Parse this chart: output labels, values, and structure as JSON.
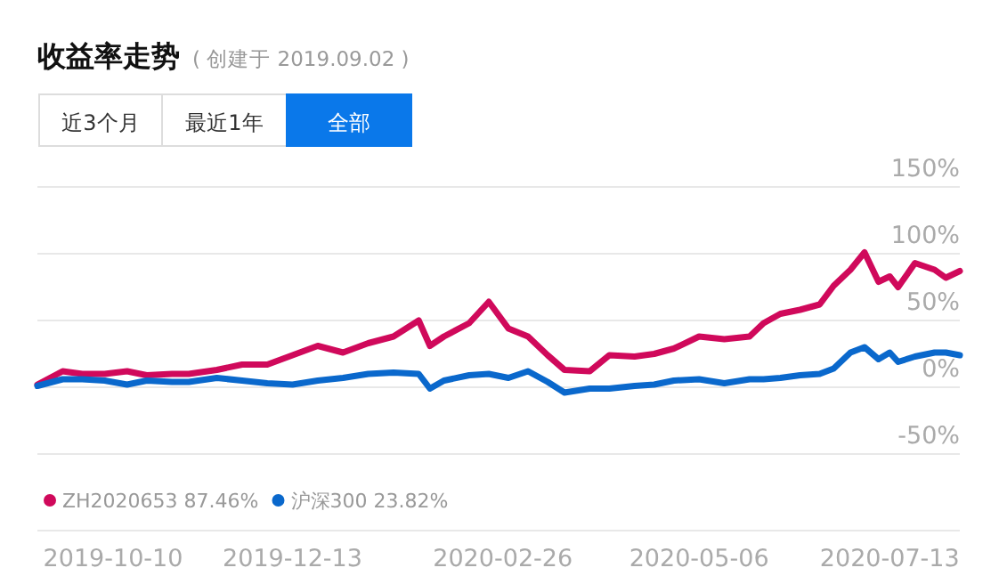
{
  "chart_data": {
    "type": "line",
    "title": "收益率走势",
    "subtitle": "( 创建于 2019.09.02 )",
    "annotations": [
      "近3个月",
      "最近1年",
      "全部"
    ],
    "x": [
      "2019-09-13",
      "2019-09-22",
      "2019-09-29",
      "2019-10-07",
      "2019-10-15",
      "2019-10-22",
      "2019-10-31",
      "2019-11-06",
      "2019-11-16",
      "2019-11-25",
      "2019-12-04",
      "2019-12-13",
      "2019-12-22",
      "2019-12-31",
      "2020-01-09",
      "2020-01-18",
      "2020-01-27",
      "2020-01-31",
      "2020-02-05",
      "2020-02-14",
      "2020-02-21",
      "2020-02-28",
      "2020-03-06",
      "2020-03-13",
      "2020-03-19",
      "2020-03-28",
      "2020-04-04",
      "2020-04-13",
      "2020-04-20",
      "2020-04-27",
      "2020-05-06",
      "2020-05-15",
      "2020-05-24",
      "2020-05-29",
      "2020-06-04",
      "2020-06-11",
      "2020-06-18",
      "2020-06-23",
      "2020-06-29",
      "2020-07-04",
      "2020-07-09",
      "2020-07-13",
      "2020-07-16",
      "2020-07-22",
      "2020-07-29",
      "2020-08-02",
      "2020-08-07"
    ],
    "series": [
      {
        "name": "ZH2020653 87.46%",
        "color": "#d0095b",
        "values": [
          2,
          12,
          10,
          10,
          12,
          9,
          10,
          10,
          13,
          17,
          17,
          24,
          31,
          26,
          33,
          38,
          50,
          31,
          38,
          48,
          64,
          44,
          38,
          24,
          13,
          12,
          24,
          23,
          25,
          29,
          38,
          36,
          38,
          48,
          55,
          58,
          62,
          76,
          88,
          101,
          79,
          83,
          75,
          93,
          88,
          82,
          87
        ]
      },
      {
        "name": "沪深300 23.82%",
        "color": "#0a68cc",
        "values": [
          1,
          6,
          6,
          5,
          2,
          5,
          4,
          4,
          7,
          5,
          3,
          2,
          5,
          7,
          10,
          11,
          10,
          -1,
          5,
          9,
          10,
          7,
          12,
          4,
          -4,
          -1,
          -1,
          1,
          2,
          5,
          6,
          3,
          6,
          6,
          7,
          9,
          10,
          14,
          26,
          30,
          21,
          26,
          19,
          23,
          26,
          26,
          24
        ]
      }
    ],
    "xlim": [
      "2019-09-13",
      "2020-08-07"
    ],
    "xticks": [
      "2019-10-10",
      "2019-12-13",
      "2020-02-26",
      "2020-05-06",
      "2020-07-13"
    ],
    "ylim": [
      -50,
      150
    ],
    "yticks": [
      {
        "value": -50,
        "label": "-50%"
      },
      {
        "value": 0,
        "label": "0%"
      },
      {
        "value": 50,
        "label": "50%"
      },
      {
        "value": 100,
        "label": "100%"
      },
      {
        "value": 150,
        "label": "150%"
      }
    ],
    "grid": "y",
    "legend": "bottom left",
    "marker": "none",
    "line_style": "solid"
  }
}
